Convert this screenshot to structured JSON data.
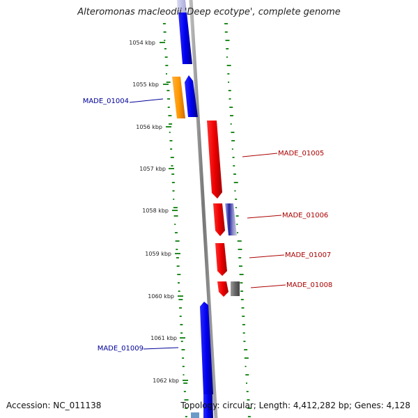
{
  "title": "Alteromonas macleodii 'Deep ecotype', complete genome",
  "footer": {
    "accession": "Accession: NC_011138",
    "summary": "Topology: circular; Length: 4,412,282 bp; Genes: 4,128"
  },
  "ruler": {
    "unit": "kbp",
    "ticks": [
      {
        "label": "1054 kbp",
        "kbp": 1054
      },
      {
        "label": "1055 kbp",
        "kbp": 1055
      },
      {
        "label": "1056 kbp",
        "kbp": 1056
      },
      {
        "label": "1057 kbp",
        "kbp": 1057
      },
      {
        "label": "1058 kbp",
        "kbp": 1058
      },
      {
        "label": "1059 kbp",
        "kbp": 1059
      },
      {
        "label": "1060 kbp",
        "kbp": 1060
      },
      {
        "label": "1061 kbp",
        "kbp": 1061
      },
      {
        "label": "1062 kbp",
        "kbp": 1062
      }
    ]
  },
  "colors": {
    "forward_strand": "#0000ee",
    "reverse_strand": "#ee0000",
    "rna_feature": "#ff9900",
    "other_feature": "#666666",
    "forward_label": "#000099",
    "reverse_label": "#aa0000",
    "gc_tick": "#228b22",
    "backbone": "#888888"
  },
  "genes": [
    {
      "label": "MADE_01004",
      "strand": "forward"
    },
    {
      "label": "MADE_01005",
      "strand": "reverse"
    },
    {
      "label": "MADE_01006",
      "strand": "reverse"
    },
    {
      "label": "MADE_01007",
      "strand": "reverse"
    },
    {
      "label": "MADE_01008",
      "strand": "reverse"
    },
    {
      "label": "MADE_01009",
      "strand": "forward"
    }
  ]
}
